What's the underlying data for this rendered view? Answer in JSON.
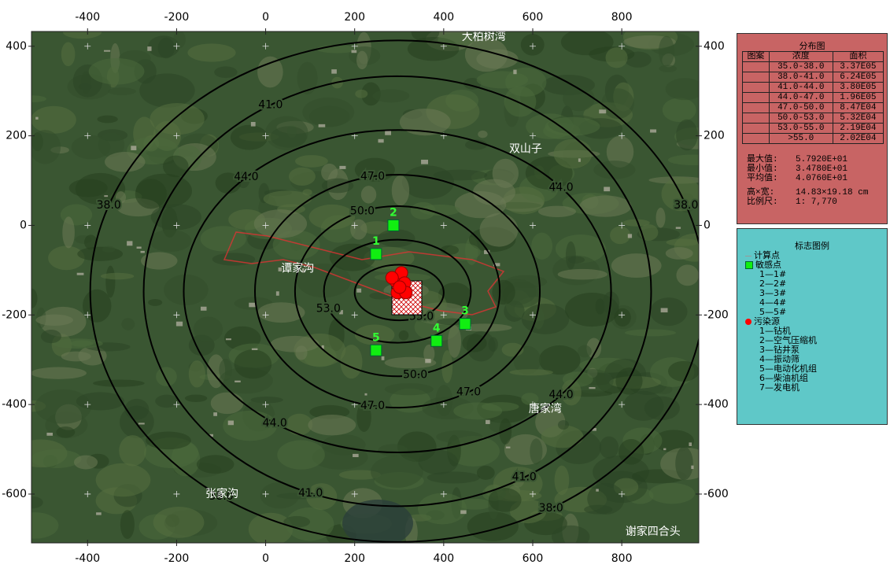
{
  "map": {
    "xlim": [
      -526,
      973
    ],
    "ylim": [
      -709,
      433
    ],
    "xticks": [
      -400,
      -200,
      0,
      200,
      400,
      600,
      800
    ],
    "yticks": [
      400,
      200,
      0,
      -200,
      -400,
      -600
    ],
    "contours": [
      {
        "level": 38.0,
        "label": "38.0",
        "cx": 296,
        "cy": -147,
        "rx": 690,
        "ry": 560
      },
      {
        "level": 41.0,
        "label": "41.0",
        "cx": 296,
        "cy": -147,
        "rx": 570,
        "ry": 480
      },
      {
        "level": 44.0,
        "label": "44.0",
        "cx": 296,
        "cy": -147,
        "rx": 480,
        "ry": 360
      },
      {
        "level": 47.0,
        "label": "47.0",
        "cx": 296,
        "cy": -147,
        "rx": 320,
        "ry": 260
      },
      {
        "level": 50.0,
        "label": "50.0",
        "cx": 296,
        "cy": -147,
        "rx": 230,
        "ry": 190
      },
      {
        "level": 53.0,
        "label": "53.0",
        "cx": 296,
        "cy": -147,
        "rx": 165,
        "ry": 115
      },
      {
        "level": 55.0,
        "label": "55.0",
        "cx": 300,
        "cy": -150,
        "rx": 100,
        "ry": 62
      }
    ],
    "sensitive_points": [
      {
        "label": "1",
        "x": 248,
        "y": -64
      },
      {
        "label": "2",
        "x": 287,
        "y": 0
      },
      {
        "label": "3",
        "x": 448,
        "y": -220
      },
      {
        "label": "4",
        "x": 384,
        "y": -258
      },
      {
        "label": "5",
        "x": 248,
        "y": -279
      }
    ],
    "sources": [
      {
        "x": 292,
        "y": -124
      },
      {
        "x": 305,
        "y": -106
      },
      {
        "x": 312,
        "y": -129
      },
      {
        "x": 296,
        "y": -150
      },
      {
        "x": 315,
        "y": -150
      },
      {
        "x": 284,
        "y": -117
      },
      {
        "x": 301,
        "y": -138
      }
    ],
    "places": [
      {
        "name": "大柏树湾",
        "x": 490,
        "y": 421
      },
      {
        "name": "双山子",
        "x": 584,
        "y": 170
      },
      {
        "name": "谭家沟",
        "x": 72,
        "y": -97
      },
      {
        "name": "唐家湾",
        "x": 628,
        "y": -410
      },
      {
        "name": "张家沟",
        "x": -98,
        "y": -600
      },
      {
        "name": "谢家四合头",
        "x": 870,
        "y": -684
      }
    ]
  },
  "legend_table": {
    "title": "分布图",
    "header": [
      "图案",
      "浓度",
      "面积"
    ],
    "rows": [
      [
        "35.0-38.0",
        "3.37E05"
      ],
      [
        "38.0-41.0",
        "6.24E05"
      ],
      [
        "41.0-44.0",
        "3.80E05"
      ],
      [
        "44.0-47.0",
        "1.96E05"
      ],
      [
        "47.0-50.0",
        "8.47E04"
      ],
      [
        "50.0-53.0",
        "5.32E04"
      ],
      [
        "53.0-55.0",
        "2.19E04"
      ],
      [
        ">55.0",
        "2.02E04"
      ]
    ]
  },
  "stats": [
    {
      "label": "最大值:",
      "value": "5.7920E+01"
    },
    {
      "label": "最小值:",
      "value": "3.4780E+01"
    },
    {
      "label": "平均值:",
      "value": "4.0760E+01"
    },
    {
      "label": "高×宽:",
      "value": "14.83×19.18 cm"
    },
    {
      "label": "比例尺:",
      "value": "1: 7,770"
    }
  ],
  "marker_legend": {
    "title": "标志图例",
    "calc": "计算点",
    "sensitive": "敏感点",
    "sensitive_items": [
      "1—1#",
      "2—2#",
      "3—3#",
      "4—4#",
      "5—5#"
    ],
    "source": "污染源",
    "source_items": [
      "1—钻机",
      "2—空气压缩机",
      "3—钻井泵",
      "4—振动筛",
      "5—电动化机组",
      "6—柴油机组",
      "7—发电机"
    ]
  }
}
